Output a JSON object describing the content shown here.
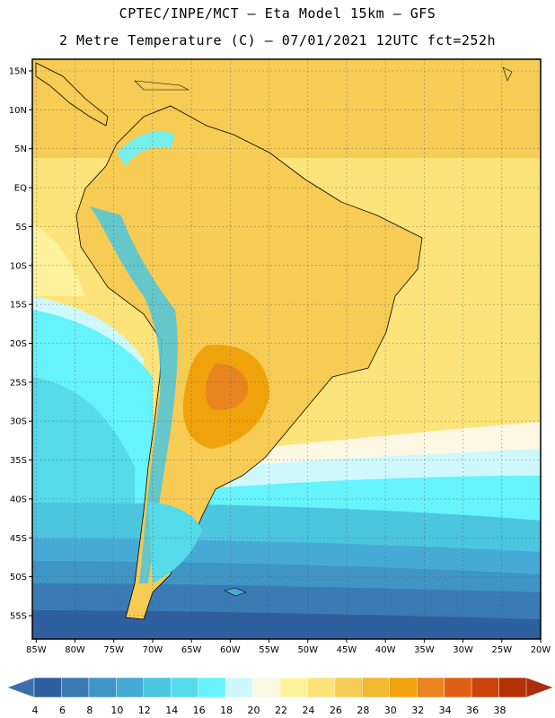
{
  "header": {
    "line1": "CPTEC/INPE/MCT –  Eta Model 15km – GFS",
    "line2": "2 Metre Temperature (C) – 07/01/2021 12UTC fct=252h"
  },
  "map": {
    "lat_labels": [
      "15N",
      "10N",
      "5N",
      "EQ",
      "5S",
      "10S",
      "15S",
      "20S",
      "25S",
      "30S",
      "35S",
      "40S",
      "45S",
      "50S",
      "55S"
    ],
    "lat_values": [
      15,
      10,
      5,
      0,
      -5,
      -10,
      -15,
      -20,
      -25,
      -30,
      -35,
      -40,
      -45,
      -50,
      -55
    ],
    "lon_labels": [
      "85W",
      "80W",
      "75W",
      "70W",
      "65W",
      "60W",
      "55W",
      "50W",
      "45W",
      "40W",
      "35W",
      "30W",
      "25W",
      "20W"
    ],
    "lon_values": [
      -85,
      -80,
      -75,
      -70,
      -65,
      -60,
      -55,
      -50,
      -45,
      -40,
      -35,
      -30,
      -25,
      -20
    ],
    "lat_range": [
      -58,
      16.5
    ],
    "lon_range": [
      -85.5,
      -20
    ],
    "grid": true
  },
  "colorbar": {
    "labels": [
      "4",
      "6",
      "8",
      "10",
      "12",
      "14",
      "16",
      "18",
      "20",
      "22",
      "24",
      "26",
      "28",
      "30",
      "32",
      "34",
      "36",
      "38"
    ],
    "colors": [
      "#2e5f9e",
      "#3a7bb6",
      "#3f95c6",
      "#45abd6",
      "#4cc6df",
      "#55dbe9",
      "#66f3fb",
      "#cff8fd",
      "#fdf8e4",
      "#fdf39c",
      "#fde47a",
      "#f6cc55",
      "#f2b831",
      "#f0a20c",
      "#e8851e",
      "#df6015",
      "#cc430c",
      "#b53106"
    ],
    "low_color": "#3d6faa",
    "high_color": "#a82e0a"
  }
}
